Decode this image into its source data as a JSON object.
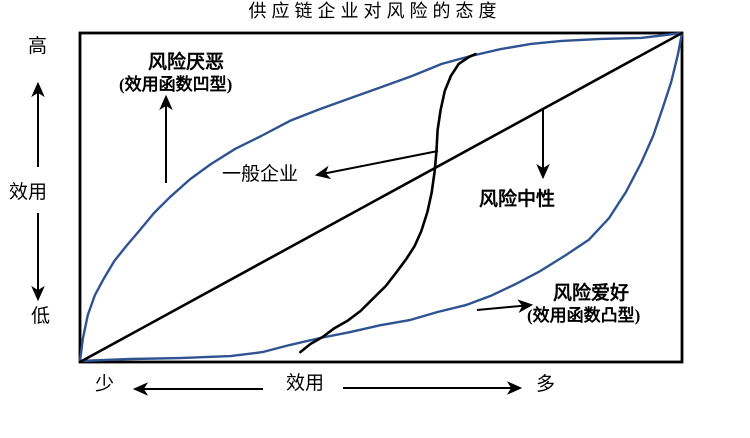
{
  "title": "供应链企业对风险的态度",
  "colors": {
    "curve_blue": "#2F5391",
    "line_black": "#000000",
    "background": "#FFFFFF"
  },
  "y_axis": {
    "high_label": "高",
    "axis_label": "效用",
    "low_label": "低"
  },
  "x_axis": {
    "less_label": "少",
    "axis_label": "效用",
    "more_label": "多"
  },
  "annotations": {
    "risk_averse_line1": "风险厌恶",
    "risk_averse_line2": "(效用函数凹型)",
    "general_enterprise": "一般企业",
    "risk_neutral": "风险中性",
    "risk_loving_line1": "风险爱好",
    "risk_loving_line2": "(效用函数凸型)"
  },
  "chart_data": {
    "type": "line",
    "title": "供应链企业对风险的态度",
    "xlabel": "效用",
    "ylabel": "效用",
    "axes": {
      "x": {
        "label": "效用",
        "min_label": "少",
        "max_label": "多"
      },
      "y": {
        "label": "效用",
        "min_label": "低",
        "max_label": "高"
      }
    },
    "xlim": [
      0,
      1
    ],
    "ylim": [
      0,
      1
    ],
    "grid": false,
    "legend": "none (curves labeled with arrows inside plot)",
    "series": [
      {
        "id": "risk_averse",
        "name": "风险厌恶 (效用函数凹型)",
        "shape": "concave",
        "color": "#2F5391",
        "points": [
          [
            0,
            0.003
          ],
          [
            0.005,
            0.073
          ],
          [
            0.013,
            0.143
          ],
          [
            0.025,
            0.204
          ],
          [
            0.04,
            0.255
          ],
          [
            0.057,
            0.307
          ],
          [
            0.077,
            0.353
          ],
          [
            0.098,
            0.398
          ],
          [
            0.123,
            0.453
          ],
          [
            0.15,
            0.502
          ],
          [
            0.183,
            0.556
          ],
          [
            0.218,
            0.602
          ],
          [
            0.258,
            0.648
          ],
          [
            0.301,
            0.687
          ],
          [
            0.349,
            0.733
          ],
          [
            0.399,
            0.769
          ],
          [
            0.451,
            0.803
          ],
          [
            0.501,
            0.836
          ],
          [
            0.551,
            0.869
          ],
          [
            0.601,
            0.906
          ],
          [
            0.649,
            0.93
          ],
          [
            0.699,
            0.951
          ],
          [
            0.749,
            0.967
          ],
          [
            0.8,
            0.976
          ],
          [
            0.865,
            0.982
          ],
          [
            0.932,
            0.985
          ],
          [
            1,
            1
          ]
        ]
      },
      {
        "id": "general",
        "name": "一般企业",
        "shape": "s-curve",
        "color": "#000000",
        "points": [
          [
            0.366,
            0.03
          ],
          [
            0.383,
            0.055
          ],
          [
            0.403,
            0.076
          ],
          [
            0.423,
            0.103
          ],
          [
            0.444,
            0.125
          ],
          [
            0.466,
            0.155
          ],
          [
            0.488,
            0.195
          ],
          [
            0.508,
            0.231
          ],
          [
            0.526,
            0.274
          ],
          [
            0.542,
            0.313
          ],
          [
            0.556,
            0.353
          ],
          [
            0.567,
            0.398
          ],
          [
            0.577,
            0.456
          ],
          [
            0.584,
            0.514
          ],
          [
            0.589,
            0.578
          ],
          [
            0.592,
            0.638
          ],
          [
            0.594,
            0.705
          ],
          [
            0.599,
            0.766
          ],
          [
            0.606,
            0.824
          ],
          [
            0.616,
            0.869
          ],
          [
            0.629,
            0.906
          ],
          [
            0.646,
            0.927
          ],
          [
            0.657,
            0.936
          ]
        ]
      },
      {
        "id": "risk_neutral",
        "name": "风险中性",
        "shape": "linear",
        "color": "#000000",
        "points": [
          [
            0,
            0
          ],
          [
            1,
            1
          ]
        ]
      },
      {
        "id": "risk_loving",
        "name": "风险爱好 (效用函数凸型)",
        "shape": "convex",
        "color": "#2F5391",
        "points": [
          [
            0,
            0.003
          ],
          [
            0.083,
            0.009
          ],
          [
            0.166,
            0.012
          ],
          [
            0.25,
            0.018
          ],
          [
            0.303,
            0.03
          ],
          [
            0.349,
            0.052
          ],
          [
            0.399,
            0.073
          ],
          [
            0.449,
            0.091
          ],
          [
            0.499,
            0.112
          ],
          [
            0.549,
            0.128
          ],
          [
            0.594,
            0.152
          ],
          [
            0.641,
            0.173
          ],
          [
            0.682,
            0.201
          ],
          [
            0.724,
            0.237
          ],
          [
            0.765,
            0.277
          ],
          [
            0.807,
            0.325
          ],
          [
            0.845,
            0.371
          ],
          [
            0.879,
            0.438
          ],
          [
            0.907,
            0.517
          ],
          [
            0.932,
            0.605
          ],
          [
            0.952,
            0.687
          ],
          [
            0.968,
            0.772
          ],
          [
            0.982,
            0.851
          ],
          [
            0.993,
            0.933
          ],
          [
            1,
            1
          ]
        ]
      }
    ]
  }
}
